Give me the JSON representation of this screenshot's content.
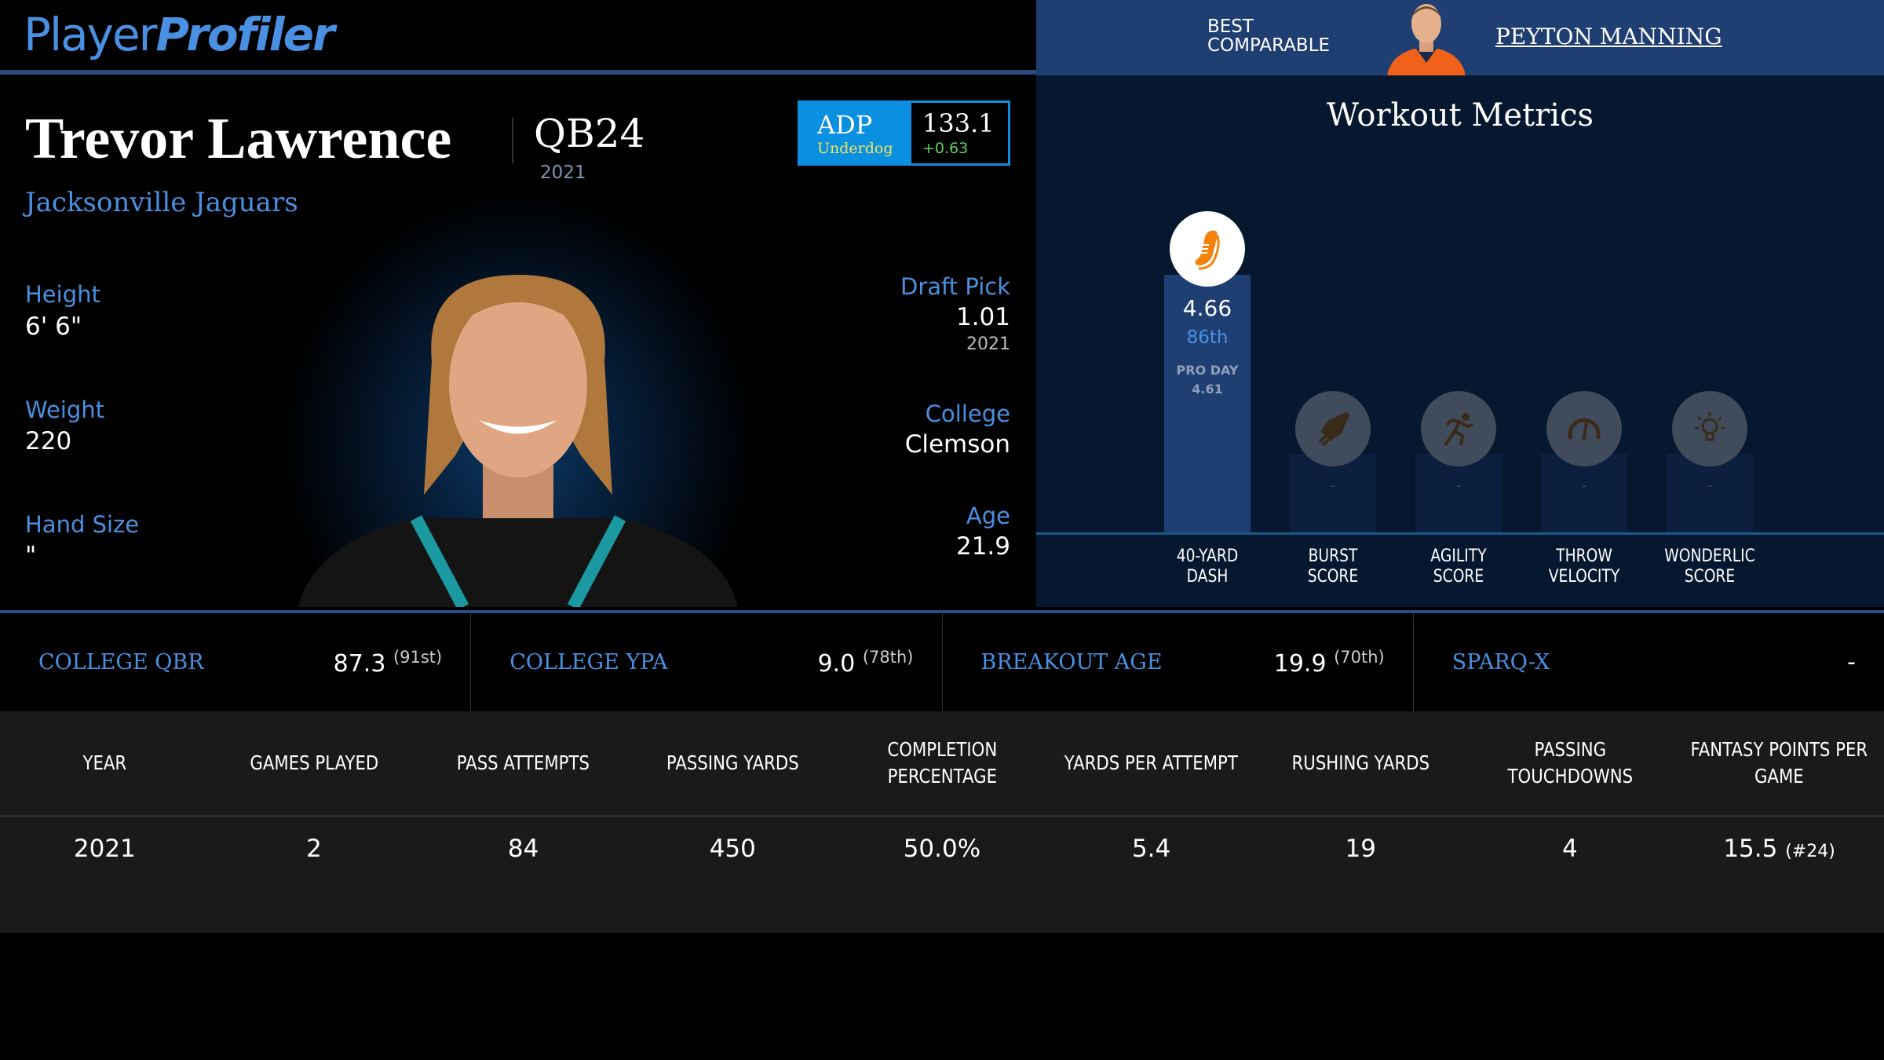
{
  "brand": {
    "part1": "Player",
    "part2": "Profiler"
  },
  "comparable": {
    "label_line1": "BEST",
    "label_line2": "COMPARABLE",
    "name": "PEYTON MANNING"
  },
  "player": {
    "name": "Trevor Lawrence",
    "position_rank": "QB24",
    "year": "2021",
    "team": "Jacksonville Jaguars"
  },
  "adp": {
    "label": "ADP",
    "source": "Underdog",
    "value": "133.1",
    "change": "+0.63"
  },
  "bio_left": [
    {
      "label": "Height",
      "value": "6' 6\""
    },
    {
      "label": "Weight",
      "value": "220"
    },
    {
      "label": "Hand Size",
      "value": "\""
    }
  ],
  "bio_right": {
    "draft": {
      "label": "Draft Pick",
      "value": "1.01",
      "sub": "2021"
    },
    "college": {
      "label": "College",
      "value": "Clemson"
    },
    "age": {
      "label": "Age",
      "value": "21.9"
    }
  },
  "workout": {
    "title": "Workout Metrics",
    "metrics": [
      {
        "icon": "shoe-icon",
        "label1": "40-YARD",
        "label2": "DASH",
        "value": "4.66",
        "percentile": "86th",
        "percentile_value": 86,
        "extra_label": "PRO DAY",
        "extra_value": "4.61"
      },
      {
        "icon": "rocket-icon",
        "label1": "BURST",
        "label2": "SCORE",
        "value": "-"
      },
      {
        "icon": "runner-icon",
        "label1": "AGILITY",
        "label2": "SCORE",
        "value": "-"
      },
      {
        "icon": "speedometer-icon",
        "label1": "THROW",
        "label2": "VELOCITY",
        "value": "-"
      },
      {
        "icon": "lightbulb-icon",
        "label1": "WONDERLIC",
        "label2": "SCORE",
        "value": "-"
      }
    ]
  },
  "stats": [
    {
      "label": "COLLEGE QBR",
      "value": "87.3",
      "rank": "(91st)"
    },
    {
      "label": "COLLEGE YPA",
      "value": "9.0",
      "rank": "(78th)"
    },
    {
      "label": "BREAKOUT AGE",
      "value": "19.9",
      "rank": "(70th)"
    },
    {
      "label": "SPARQ-X",
      "value": "-",
      "rank": ""
    }
  ],
  "table": {
    "headers": [
      "YEAR",
      "GAMES PLAYED",
      "PASS ATTEMPTS",
      "PASSING YARDS",
      "COMPLETION PERCENTAGE",
      "YARDS PER ATTEMPT",
      "RUSHING YARDS",
      "PASSING TOUCHDOWNS",
      "FANTASY POINTS PER GAME"
    ],
    "rows": [
      [
        "2021",
        "2",
        "84",
        "450",
        "50.0%",
        "5.4",
        "19",
        "4",
        "15.5"
      ]
    ],
    "fp_rank": "(#24)"
  },
  "colors": {
    "accent": "#4a90e2",
    "header_blue": "#1f3f73",
    "adp_blue": "#0b8fe0",
    "shoe_orange": "#f5820a"
  }
}
